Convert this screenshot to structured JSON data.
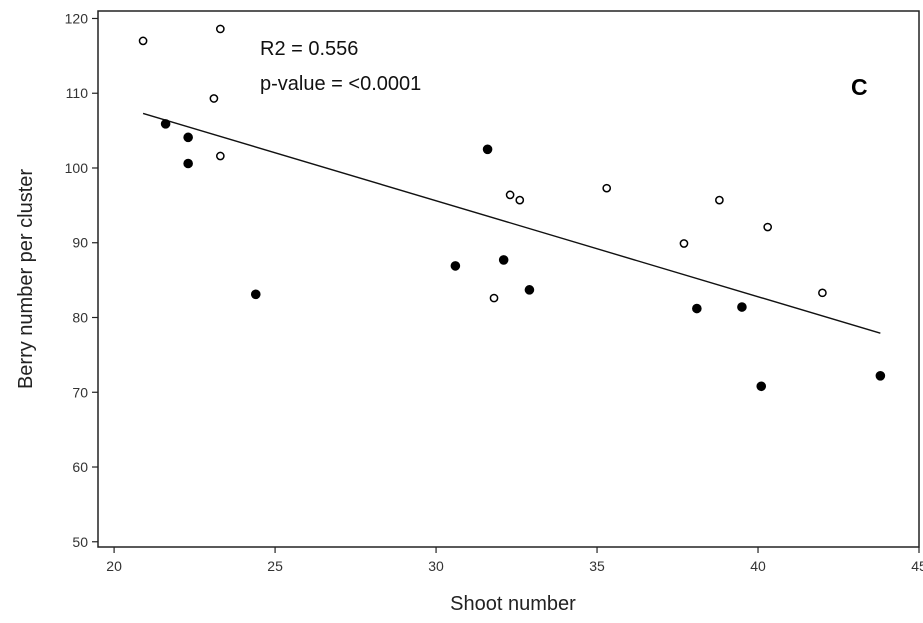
{
  "chart_data": {
    "type": "scatter",
    "title": "",
    "xlabel": "Shoot number",
    "ylabel": "Berry number per cluster",
    "xlim": [
      19.5,
      45
    ],
    "ylim": [
      49.3,
      121
    ],
    "xticks": [
      20,
      25,
      30,
      35,
      40,
      45
    ],
    "yticks": [
      50,
      60,
      70,
      80,
      90,
      100,
      110,
      120
    ],
    "grid": false,
    "legend": "none",
    "series": [
      {
        "marker": "open-circle",
        "points": [
          {
            "x": 20.9,
            "y": 117.0
          },
          {
            "x": 23.3,
            "y": 118.6
          },
          {
            "x": 23.1,
            "y": 109.3
          },
          {
            "x": 23.3,
            "y": 101.6
          },
          {
            "x": 31.8,
            "y": 82.6
          },
          {
            "x": 32.3,
            "y": 96.4
          },
          {
            "x": 32.6,
            "y": 95.7
          },
          {
            "x": 35.3,
            "y": 97.3
          },
          {
            "x": 37.7,
            "y": 89.9
          },
          {
            "x": 38.8,
            "y": 95.7
          },
          {
            "x": 40.3,
            "y": 92.1
          },
          {
            "x": 42.0,
            "y": 83.3
          }
        ]
      },
      {
        "marker": "filled-circle",
        "points": [
          {
            "x": 21.6,
            "y": 105.9
          },
          {
            "x": 22.3,
            "y": 104.1
          },
          {
            "x": 22.3,
            "y": 100.6
          },
          {
            "x": 24.4,
            "y": 83.1
          },
          {
            "x": 30.6,
            "y": 86.9
          },
          {
            "x": 31.6,
            "y": 102.5
          },
          {
            "x": 32.1,
            "y": 87.7
          },
          {
            "x": 32.9,
            "y": 83.7
          },
          {
            "x": 38.1,
            "y": 81.2
          },
          {
            "x": 39.5,
            "y": 81.4
          },
          {
            "x": 40.1,
            "y": 70.8
          },
          {
            "x": 43.8,
            "y": 72.2
          }
        ]
      }
    ],
    "trendline": {
      "x": [
        20.9,
        43.8
      ],
      "y": [
        107.3,
        77.9
      ]
    },
    "annotations": {
      "r2": "R2 = 0.556",
      "pvalue": "p-value = <0.0001",
      "panel": "C"
    }
  }
}
